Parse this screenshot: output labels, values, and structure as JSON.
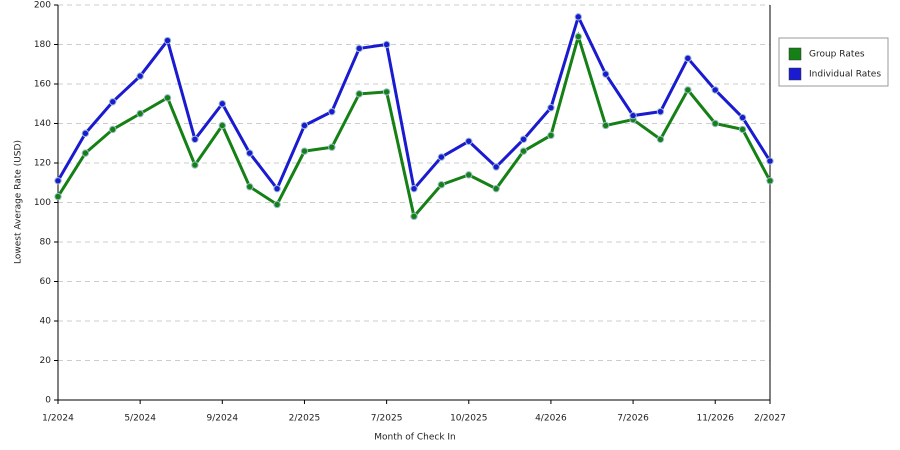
{
  "chart_data": {
    "type": "line",
    "x_label": "Month of Check In",
    "y_label": "Lowest Average Rate (USD)",
    "categories": [
      "1/2024",
      null,
      null,
      "5/2024",
      null,
      null,
      "9/2024",
      null,
      null,
      "2/2025",
      null,
      null,
      "7/2025",
      null,
      null,
      "10/2025",
      null,
      null,
      "4/2026",
      null,
      null,
      "7/2026",
      null,
      null,
      "11/2026",
      null,
      "2/2027"
    ],
    "series": [
      {
        "name": "Group Rates",
        "color": "#158015",
        "values": [
          103,
          125,
          137,
          145,
          153,
          119,
          139,
          108,
          99,
          126,
          128,
          155,
          156,
          93,
          109,
          114,
          107,
          126,
          134,
          184,
          139,
          142,
          132,
          157,
          140,
          137,
          111
        ]
      },
      {
        "name": "Individual Rates",
        "color": "#1a1ad0",
        "values": [
          111,
          135,
          151,
          164,
          182,
          132,
          150,
          125,
          107,
          139,
          146,
          178,
          180,
          107,
          123,
          131,
          118,
          132,
          148,
          194,
          165,
          144,
          146,
          173,
          157,
          143,
          121
        ]
      }
    ],
    "ylim": [
      0,
      200
    ],
    "yticks": [
      0,
      20,
      40,
      60,
      80,
      100,
      120,
      140,
      160,
      180,
      200
    ],
    "grid": true,
    "legend": "right"
  }
}
